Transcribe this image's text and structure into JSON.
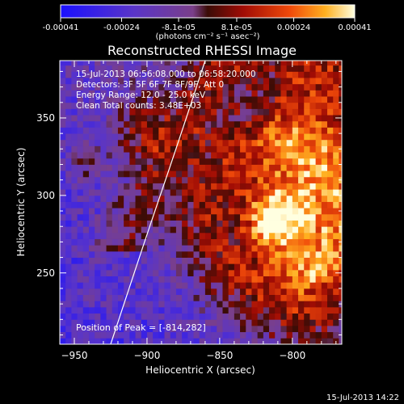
{
  "chart_data": {
    "type": "heatmap",
    "title": "Reconstructed RHESSI Image",
    "xlabel": "Heliocentric X (arcsec)",
    "ylabel": "Heliocentric Y (arcsec)",
    "xlim": [
      -960,
      -766
    ],
    "ylim": [
      204,
      387
    ],
    "x_ticks": [
      -950,
      -900,
      -850,
      -800
    ],
    "y_ticks": [
      250,
      300,
      350
    ],
    "colorbar": {
      "range": [
        -0.00041,
        0.00041
      ],
      "tick_labels": [
        "-0.00041",
        "-0.00024",
        "-8.1e-05",
        "8.1e-05",
        "0.00024",
        "0.00041"
      ],
      "unit_label": "(photons cm⁻² s⁻¹ asec⁻²)"
    },
    "annotations": [
      "15-Jul-2013 06:56:08.000 to 06:58:20.000",
      "Detectors: 3F 5F 6F 7F 8F/9F, Att 0",
      "Energy Range: 12.0 - 25.0 keV",
      "Clean     Total counts: 3.48E+03"
    ],
    "peak_label": "Position of Peak = [-814,282]",
    "peak": {
      "x": -814,
      "y": 282
    },
    "timestamp": "15-Jul-2013 14:22",
    "limb_curve": [
      [
        -925,
        204
      ],
      [
        -900,
        275
      ],
      [
        -880,
        330
      ],
      [
        -860,
        387
      ]
    ]
  }
}
